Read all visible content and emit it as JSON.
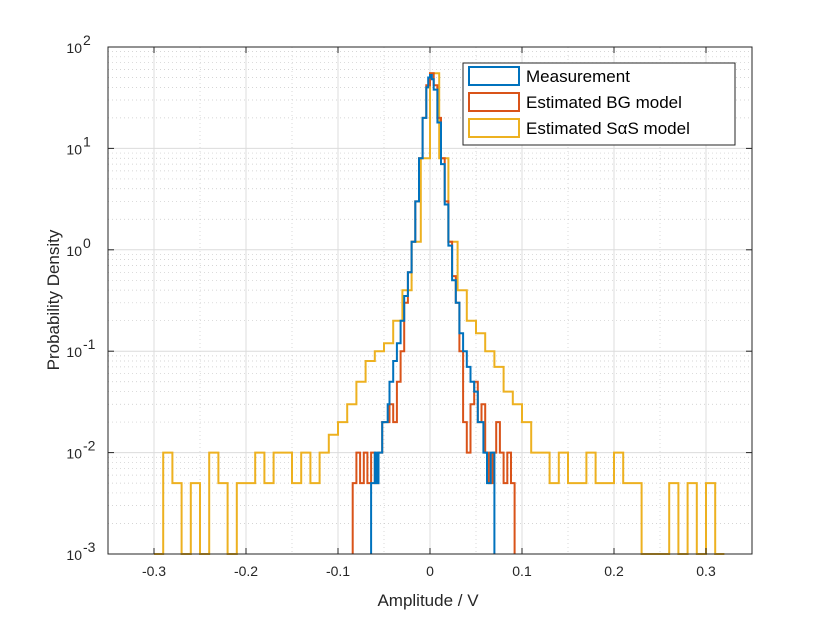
{
  "chart_data": {
    "type": "line",
    "title": "",
    "xlabel": "Amplitude / V",
    "ylabel": "Probability Density",
    "xlim": [
      -0.35,
      0.35
    ],
    "ylim": [
      0.001,
      100
    ],
    "yscale": "log",
    "grid": true,
    "minor_grid": true,
    "legend_position": "top-right",
    "x_ticks": [
      -0.3,
      -0.2,
      -0.1,
      0,
      0.1,
      0.2,
      0.3
    ],
    "x_tick_labels": [
      "-0.3",
      "-0.2",
      "-0.1",
      "0",
      "0.1",
      "0.2",
      "0.3"
    ],
    "y_ticks": [
      {
        "value": 0.001,
        "base": "10",
        "exp": "-3"
      },
      {
        "value": 0.01,
        "base": "10",
        "exp": "-2"
      },
      {
        "value": 0.1,
        "base": "10",
        "exp": "-1"
      },
      {
        "value": 1,
        "base": "10",
        "exp": "0"
      },
      {
        "value": 10,
        "base": "10",
        "exp": "1"
      },
      {
        "value": 100,
        "base": "10",
        "exp": "2"
      }
    ],
    "series": [
      {
        "name": "Measurement",
        "color": "#0072BD",
        "x": [
          -0.064,
          -0.06,
          -0.058,
          -0.056,
          -0.052,
          -0.05,
          -0.046,
          -0.044,
          -0.04,
          -0.036,
          -0.032,
          -0.028,
          -0.024,
          -0.02,
          -0.016,
          -0.012,
          -0.008,
          -0.004,
          -0.002,
          0,
          0.002,
          0.004,
          0.008,
          0.012,
          0.016,
          0.02,
          0.024,
          0.028,
          0.032,
          0.036,
          0.04,
          0.044,
          0.048,
          0.052,
          0.058,
          0.062,
          0.066
        ],
        "y": [
          0.005,
          0.01,
          0.005,
          0.01,
          0.02,
          0.02,
          0.03,
          0.05,
          0.08,
          0.12,
          0.2,
          0.35,
          0.6,
          1.2,
          3,
          8,
          20,
          40,
          50,
          53,
          48,
          38,
          18,
          7,
          2.8,
          1.1,
          0.5,
          0.3,
          0.15,
          0.1,
          0.07,
          0.05,
          0.04,
          0.02,
          0.01,
          0.005,
          0.01
        ]
      },
      {
        "name": "Estimated BG model",
        "color": "#D95319",
        "x": [
          -0.084,
          -0.08,
          -0.076,
          -0.072,
          -0.068,
          -0.064,
          -0.06,
          -0.056,
          -0.052,
          -0.048,
          -0.044,
          -0.04,
          -0.036,
          -0.032,
          -0.028,
          -0.024,
          -0.02,
          -0.016,
          -0.012,
          -0.008,
          -0.004,
          0,
          0.004,
          0.008,
          0.012,
          0.016,
          0.02,
          0.024,
          0.028,
          0.032,
          0.036,
          0.04,
          0.044,
          0.048,
          0.052,
          0.056,
          0.06,
          0.064,
          0.068,
          0.072,
          0.076,
          0.08,
          0.084,
          0.088
        ],
        "y": [
          0.005,
          0.01,
          0.005,
          0.01,
          0.005,
          0.01,
          0.005,
          0.01,
          0.02,
          0.02,
          0.03,
          0.02,
          0.05,
          0.1,
          0.3,
          0.6,
          1.2,
          3,
          8,
          20,
          42,
          55,
          42,
          20,
          8,
          3,
          1.2,
          0.55,
          0.3,
          0.1,
          0.02,
          0.01,
          0.03,
          0.05,
          0.02,
          0.03,
          0.01,
          0.005,
          0.01,
          0.02,
          0.01,
          0.005,
          0.01,
          0.005
        ]
      },
      {
        "name": "Estimated SαS model",
        "color": "#EDB120",
        "x": [
          -0.3,
          -0.29,
          -0.28,
          -0.27,
          -0.26,
          -0.25,
          -0.24,
          -0.23,
          -0.22,
          -0.21,
          -0.2,
          -0.19,
          -0.18,
          -0.17,
          -0.16,
          -0.15,
          -0.14,
          -0.13,
          -0.12,
          -0.11,
          -0.1,
          -0.09,
          -0.08,
          -0.07,
          -0.06,
          -0.05,
          -0.04,
          -0.03,
          -0.02,
          -0.01,
          0,
          0.01,
          0.02,
          0.03,
          0.04,
          0.05,
          0.06,
          0.07,
          0.08,
          0.09,
          0.1,
          0.11,
          0.12,
          0.13,
          0.14,
          0.15,
          0.16,
          0.17,
          0.18,
          0.19,
          0.2,
          0.21,
          0.22,
          0.23,
          0.24,
          0.25,
          0.26,
          0.27,
          0.28,
          0.29,
          0.3,
          0.31
        ],
        "y": [
          0.001,
          0.01,
          0.005,
          0.001,
          0.005,
          0.001,
          0.01,
          0.005,
          0.001,
          0.005,
          0.005,
          0.01,
          0.005,
          0.01,
          0.01,
          0.005,
          0.01,
          0.005,
          0.01,
          0.015,
          0.02,
          0.03,
          0.05,
          0.08,
          0.1,
          0.12,
          0.2,
          0.4,
          1.2,
          8,
          55,
          8,
          1.2,
          0.4,
          0.2,
          0.15,
          0.1,
          0.07,
          0.04,
          0.03,
          0.02,
          0.01,
          0.01,
          0.005,
          0.01,
          0.005,
          0.005,
          0.01,
          0.005,
          0.005,
          0.01,
          0.005,
          0.005,
          0.001,
          0.001,
          0.001,
          0.005,
          0.001,
          0.005,
          0.001,
          0.005,
          0.001
        ]
      }
    ]
  }
}
